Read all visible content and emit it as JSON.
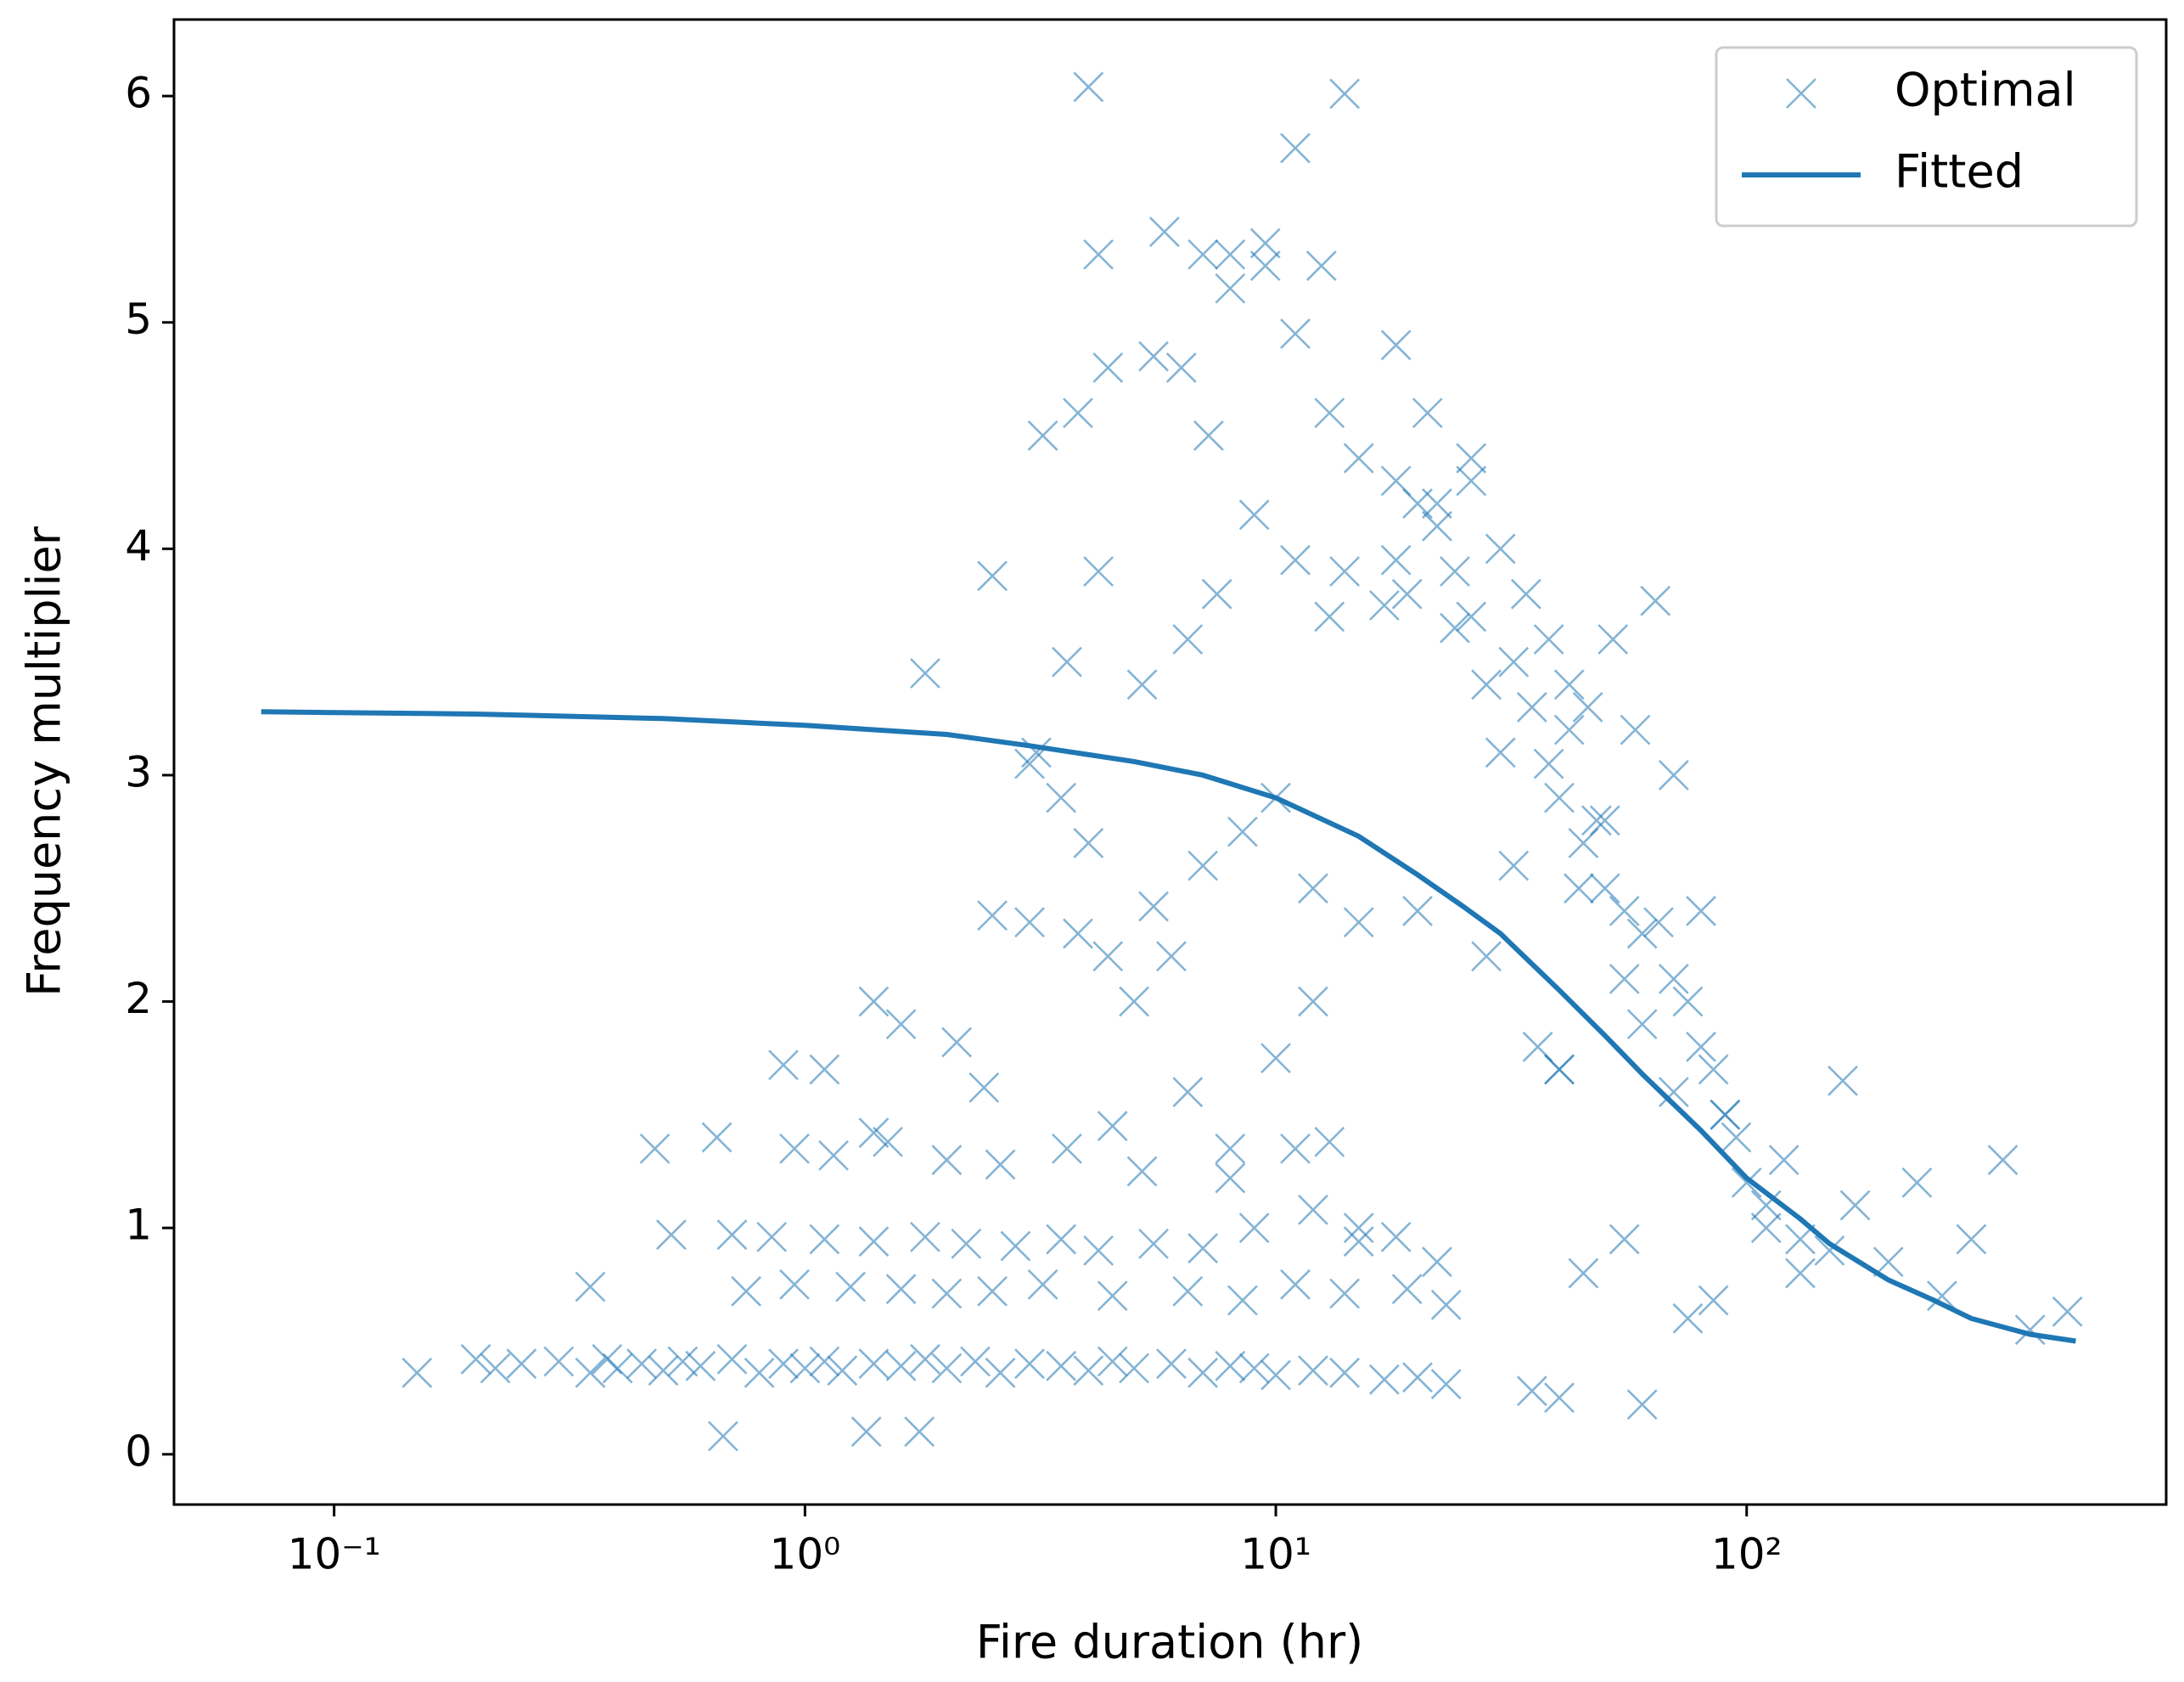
{
  "chart_data": {
    "type": "scatter",
    "xlabel": "Fire duration (hr)",
    "ylabel": "Frequency multiplier",
    "xscale": "log",
    "xlim": [
      0.0457,
      778
    ],
    "ylim": [
      -0.222,
      6.338
    ],
    "xticks": [
      {
        "value": 0.1,
        "label": "10⁻¹"
      },
      {
        "value": 1,
        "label": "10⁰"
      },
      {
        "value": 10,
        "label": "10¹"
      },
      {
        "value": 100,
        "label": "10²"
      }
    ],
    "yticks": [
      0,
      1,
      2,
      3,
      4,
      5,
      6
    ],
    "legend": "upper right",
    "series": [
      {
        "name": "Optimal",
        "type": "scatter",
        "color": "#1f77b4",
        "x": [
          0.15,
          0.2,
          0.22,
          0.25,
          0.3,
          0.35,
          0.38,
          0.4,
          0.45,
          0.5,
          0.55,
          0.6,
          0.7,
          0.8,
          0.9,
          1.0,
          1.1,
          1.2,
          1.4,
          1.6,
          1.8,
          2.0,
          2.3,
          2.6,
          3.0,
          3.5,
          4.0,
          4.5,
          5.0,
          6.0,
          7.0,
          8.0,
          9.0,
          10,
          12,
          14,
          17,
          20,
          23,
          0.52,
          0.7,
          0.85,
          1.1,
          1.4,
          1.8,
          2.2,
          2.8,
          3.5,
          4.2,
          5.5,
          7,
          9,
          12,
          15,
          18,
          22,
          0.35,
          0.75,
          0.95,
          1.25,
          1.6,
          2.0,
          2.5,
          3.2,
          4.5,
          6.5,
          8.5,
          11,
          14,
          19,
          23,
          0.48,
          0.65,
          0.95,
          1.15,
          1.5,
          2.0,
          2.6,
          3.6,
          4.5,
          5.2,
          8,
          11,
          0.67,
          1.35,
          1.75,
          0.9,
          1.1,
          1.4,
          1.6,
          2.1,
          2.4,
          3.0,
          3.8,
          5.5,
          6.5,
          8,
          10,
          13,
          15,
          1.8,
          2.5,
          3.1,
          3.5,
          4.0,
          4.4,
          5.0,
          6.0,
          7.0,
          8.5,
          10,
          12,
          15,
          20,
          2.5,
          3.0,
          3.6,
          4.2,
          5.2,
          6.5,
          7.5,
          9,
          11,
          13,
          14,
          17,
          19,
          24,
          3.2,
          3.8,
          4.4,
          5.5,
          6.3,
          7.2,
          8.0,
          9.5,
          11,
          13,
          15,
          18,
          21,
          26,
          4.0,
          4.2,
          5.8,
          7.0,
          8.0,
          9.5,
          11,
          12.5,
          14,
          18,
          20,
          22,
          24,
          26,
          28,
          30,
          32,
          35,
          38,
          40,
          42,
          45,
          48,
          50,
          55,
          60,
          65,
          70,
          75,
          80,
          85,
          90,
          95,
          100,
          110,
          120,
          130,
          150,
          170,
          200,
          230,
          260,
          300,
          350,
          400,
          480,
          28,
          32,
          36,
          40,
          44,
          50,
          55,
          60,
          70,
          80,
          90,
          110,
          130,
          160,
          22,
          26,
          30,
          34,
          38,
          42,
          46,
          52,
          58,
          64,
          70,
          35,
          40,
          45,
          55,
          60,
          75,
          85,
          1.4,
          12,
          18,
          40
        ],
        "values": [
          0.36,
          0.42,
          0.38,
          0.4,
          0.41,
          0.36,
          0.42,
          0.38,
          0.4,
          0.37,
          0.41,
          0.39,
          0.42,
          0.36,
          0.4,
          0.38,
          0.41,
          0.37,
          0.4,
          0.39,
          0.42,
          0.38,
          0.41,
          0.36,
          0.4,
          0.39,
          0.37,
          0.41,
          0.38,
          0.4,
          0.36,
          0.39,
          0.38,
          0.35,
          0.37,
          0.36,
          0.33,
          0.34,
          0.31,
          0.97,
          0.97,
          0.96,
          0.95,
          0.94,
          0.96,
          0.93,
          0.92,
          0.95,
          0.9,
          0.93,
          0.91,
          1.0,
          1.08,
          0.94,
          0.96,
          0.85,
          0.74,
          0.72,
          0.75,
          0.74,
          0.73,
          0.71,
          0.72,
          0.75,
          0.7,
          0.72,
          0.68,
          0.75,
          0.71,
          0.73,
          0.66,
          1.35,
          1.4,
          1.35,
          1.32,
          1.38,
          1.3,
          1.28,
          1.35,
          1.45,
          1.25,
          1.22,
          1.35,
          0.08,
          0.1,
          0.1,
          1.72,
          1.7,
          1.42,
          1.9,
          1.82,
          1.62,
          2.35,
          2.3,
          2.42,
          1.6,
          1.35,
          1.75,
          1.38,
          1.0,
          3.45,
          2.38,
          3.1,
          2.9,
          2.7,
          2.2,
          2.0,
          2.2,
          2.6,
          2.75,
          2.9,
          2.5,
          2.35,
          2.4,
          3.88,
          3.05,
          3.5,
          3.9,
          3.4,
          3.6,
          3.8,
          4.15,
          3.95,
          3.7,
          3.9,
          3.75,
          3.8,
          3.65,
          4.5,
          4.6,
          4.8,
          4.85,
          4.8,
          4.5,
          5.3,
          5.25,
          4.95,
          4.6,
          4.4,
          4.3,
          4.6,
          4.4,
          6.04,
          5.3,
          5.4,
          5.3,
          5.15,
          5.35,
          5.77,
          5.25,
          6.01,
          3.95,
          4.2,
          4.1,
          3.9,
          3.7,
          3.4,
          3.1,
          3.5,
          3.3,
          3.05,
          2.9,
          3.2,
          2.7,
          2.8,
          2.5,
          2.4,
          2.3,
          2.35,
          2.1,
          2.0,
          1.8,
          1.7,
          1.5,
          1.4,
          1.2,
          1.1,
          1.3,
          0.95,
          0.9,
          1.1,
          0.85,
          1.2,
          0.7,
          0.95,
          1.3,
          0.55,
          0.63,
          2.2,
          2.6,
          1.8,
          1.7,
          2.5,
          2.8,
          2.1,
          1.9,
          1.6,
          2.4,
          1.5,
          1.0,
          0.8,
          1.65,
          4.2,
          4.3,
          4.0,
          3.8,
          3.6,
          3.4,
          3.3,
          3.6,
          3.2,
          3.77,
          3.0,
          0.28,
          0.25,
          0.8,
          0.95,
          0.22,
          0.6,
          0.68,
          2.0,
          2.0,
          4.9,
          1.7
        ]
      },
      {
        "name": "Fitted",
        "type": "line",
        "color": "#1f77b4",
        "x": [
          0.07,
          0.2,
          0.5,
          1,
          2,
          3,
          5,
          7,
          10,
          15,
          20,
          25,
          30,
          40,
          50,
          60,
          80,
          100,
          130,
          150,
          200,
          250,
          300,
          400,
          500
        ],
        "values": [
          3.28,
          3.27,
          3.25,
          3.22,
          3.18,
          3.13,
          3.06,
          3.0,
          2.9,
          2.73,
          2.56,
          2.42,
          2.3,
          2.05,
          1.85,
          1.68,
          1.43,
          1.22,
          1.04,
          0.93,
          0.77,
          0.68,
          0.6,
          0.53,
          0.5
        ]
      }
    ]
  }
}
